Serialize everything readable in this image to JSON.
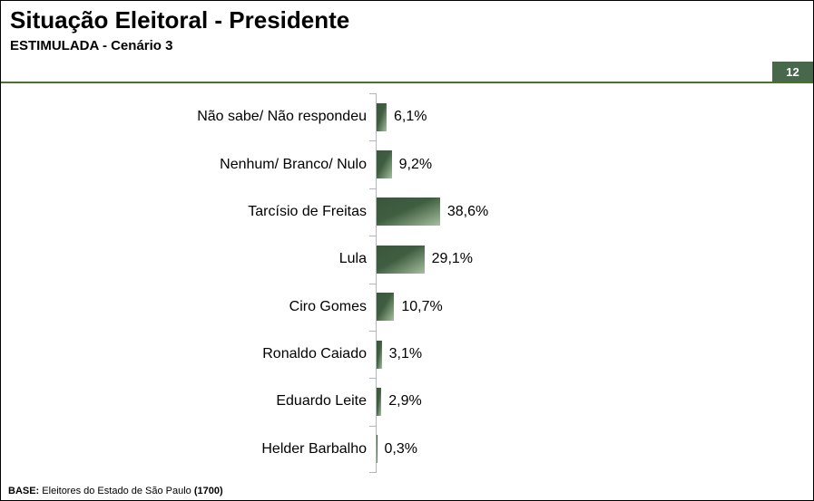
{
  "header": {
    "title": "Situação Eleitoral - Presidente",
    "subtitle": "ESTIMULADA - Cenário 3",
    "page_number": "12"
  },
  "chart_data": {
    "type": "bar",
    "orientation": "horizontal",
    "title": "Situação Eleitoral - Presidente",
    "subtitle": "ESTIMULADA - Cenário 3",
    "categories": [
      "Não sabe/ Não respondeu",
      "Nenhum/ Branco/ Nulo",
      "Tarcísio de Freitas",
      "Lula",
      "Ciro Gomes",
      "Ronaldo Caiado",
      "Eduardo Leite",
      "Helder Barbalho"
    ],
    "values": [
      6.1,
      9.2,
      38.6,
      29.1,
      10.7,
      3.1,
      2.9,
      0.3
    ],
    "value_labels": [
      "6,1%",
      "9,2%",
      "38,6%",
      "29,1%",
      "10,7%",
      "3,1%",
      "2,9%",
      "0,3%"
    ],
    "unit": "%",
    "xlim": [
      0,
      100
    ],
    "grid": false,
    "legend": false,
    "bar_color_dark": "#3a563c",
    "bar_color_mid": "#3f5e40",
    "bar_color_light": "#a6bf9f"
  },
  "footer": {
    "base_label": "BASE:",
    "base_text": " Eleitores do Estado de São Paulo ",
    "base_count": "(1700)"
  },
  "colors": {
    "accent_green": "#47684b",
    "rule_green": "#4a7229",
    "axis_gray": "#b3b7bb",
    "text": "#000000",
    "badge_text": "#ffffff"
  }
}
